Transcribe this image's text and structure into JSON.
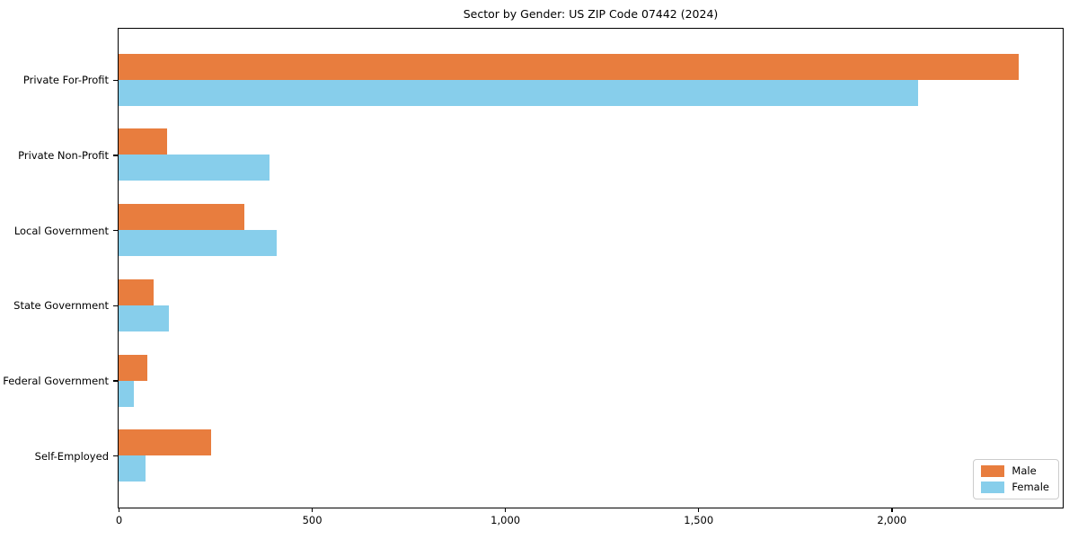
{
  "chart_data": {
    "type": "bar",
    "orientation": "horizontal",
    "title": "Sector by Gender: US ZIP Code 07442 (2024)",
    "categories": [
      "Private For-Profit",
      "Private Non-Profit",
      "Local Government",
      "State Government",
      "Federal Government",
      "Self-Employed"
    ],
    "series": [
      {
        "name": "Male",
        "color": "#e87d3e",
        "values": [
          2330,
          125,
          325,
          90,
          75,
          240
        ]
      },
      {
        "name": "Female",
        "color": "#87ceeb",
        "values": [
          2070,
          390,
          410,
          130,
          40,
          70
        ]
      }
    ],
    "xlabel": "",
    "ylabel": "",
    "xlim": [
      0,
      2441
    ],
    "x_ticks": [
      0,
      500,
      1000,
      1500,
      2000
    ],
    "x_tick_labels": [
      "0",
      "500",
      "1,000",
      "1,500",
      "2,000"
    ],
    "grid": false,
    "legend_position": "lower right"
  }
}
